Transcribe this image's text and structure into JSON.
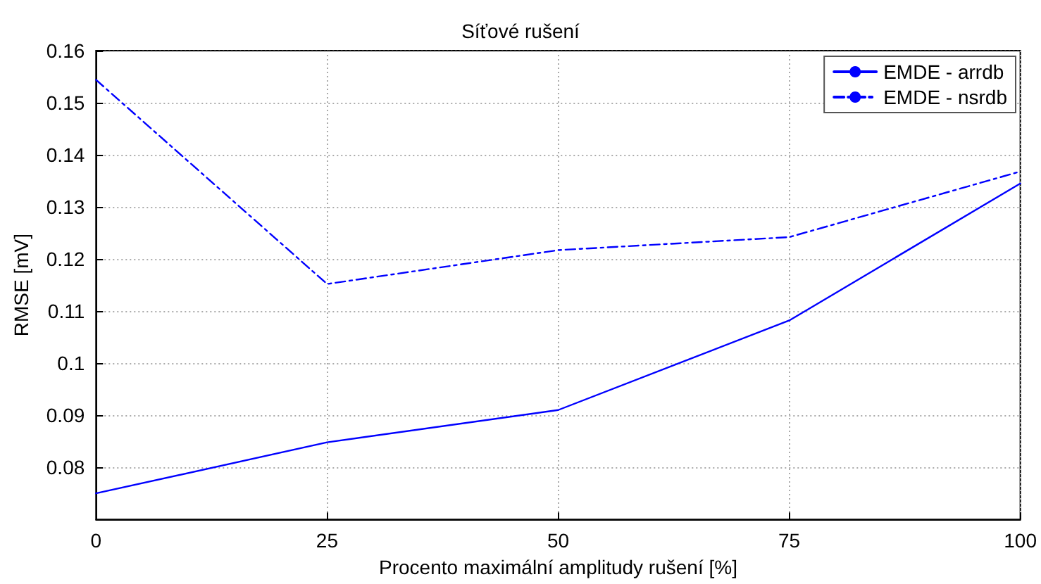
{
  "chart_data": {
    "type": "line",
    "title": "Síťové rušení",
    "xlabel": "Procento maximální amplitudy rušení [%]",
    "ylabel": "RMSE [mV]",
    "x": [
      0,
      25,
      50,
      75,
      100
    ],
    "series": [
      {
        "name": "EMDE - arrdb",
        "color": "#0000ff",
        "line_style": "solid",
        "values": [
          0.075,
          0.0848,
          0.091,
          0.1082,
          0.1345
        ]
      },
      {
        "name": "EMDE - nsrdb",
        "color": "#0000ff",
        "line_style": "dashed",
        "values": [
          0.1544,
          0.1152,
          0.1217,
          0.1242,
          0.1368
        ]
      }
    ],
    "xlim": [
      0,
      100
    ],
    "xticks": [
      0,
      25,
      50,
      75,
      100
    ],
    "ylim": [
      0.07,
      0.16
    ],
    "yticks": [
      0.08,
      0.09,
      0.1,
      0.11,
      0.12,
      0.13,
      0.14,
      0.15,
      0.16
    ],
    "grid": true,
    "legend": "top right",
    "marker": "none"
  }
}
